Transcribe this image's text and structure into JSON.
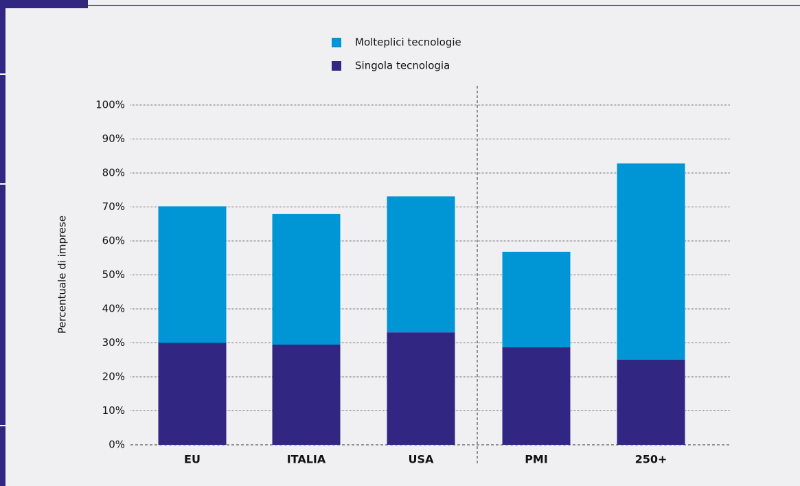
{
  "chart_data": {
    "type": "stacked-bar",
    "y_label": "Percentuale di imprese",
    "categories": [
      "EU",
      "ITALIA",
      "USA",
      "PMI",
      "250+"
    ],
    "series": [
      {
        "name": "Singola tecnologia",
        "color": "#312783",
        "values": [
          30,
          29.5,
          33.1,
          28.7,
          25.1
        ]
      },
      {
        "name": "Molteplici tecnologie",
        "color": "#0096d6",
        "values": [
          40.2,
          38.4,
          40,
          28.1,
          57.7
        ]
      }
    ],
    "ylim": [
      0,
      100
    ],
    "yticks": [
      {
        "value": 0,
        "label": "0%"
      },
      {
        "value": 10,
        "label": "10%"
      },
      {
        "value": 20,
        "label": "20%"
      },
      {
        "value": 30,
        "label": "30%"
      },
      {
        "value": 40,
        "label": "40%"
      },
      {
        "value": 50,
        "label": "50%"
      },
      {
        "value": 60,
        "label": "60%"
      },
      {
        "value": 70,
        "label": "70%"
      },
      {
        "value": 80,
        "label": "80%"
      },
      {
        "value": 90,
        "label": "90%"
      },
      {
        "value": 100,
        "label": "100%"
      }
    ],
    "grid": true
  }
}
